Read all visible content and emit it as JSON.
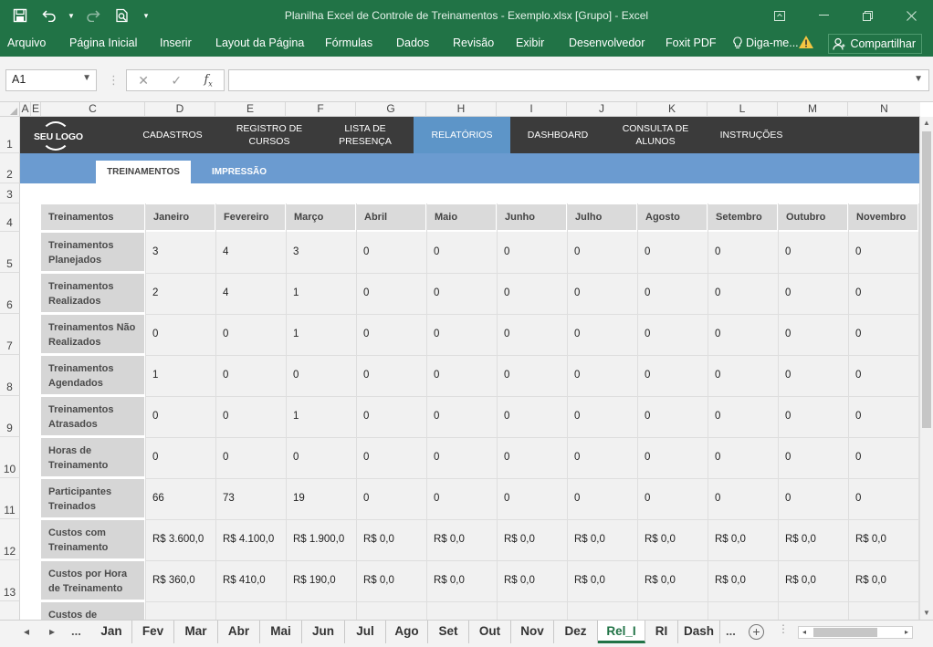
{
  "window": {
    "title": "Planilha Excel de Controle de Treinamentos - Exemplo.xlsx  [Grupo] - Excel"
  },
  "ribbon": {
    "tabs": [
      "Arquivo",
      "Página Inicial",
      "Inserir",
      "Layout da Página",
      "Fórmulas",
      "Dados",
      "Revisão",
      "Exibir",
      "Desenvolvedor",
      "Foxit PDF",
      "Diga-me..."
    ],
    "share": "Compartilhar"
  },
  "formula_bar": {
    "name_box": "A1",
    "formula": ""
  },
  "columns": [
    "A",
    "E",
    "C",
    "D",
    "E",
    "F",
    "G",
    "H",
    "I",
    "J",
    "K",
    "L",
    "M",
    "N"
  ],
  "rows": [
    "1",
    "2",
    "3",
    "4",
    "5",
    "6",
    "7",
    "8",
    "9",
    "10",
    "11",
    "12",
    "13"
  ],
  "dashboard": {
    "logo": "SEU LOGO",
    "nav": [
      "CADASTROS",
      "REGISTRO DE CURSOS",
      "LISTA DE PRESENÇA",
      "RELATÓRIOS",
      "DASHBOARD",
      "CONSULTA DE ALUNOS",
      "INSTRUÇÕES"
    ],
    "active_nav": "RELATÓRIOS",
    "subtabs": [
      "TREINAMENTOS",
      "IMPRESSÃO"
    ],
    "active_subtab": "TREINAMENTOS"
  },
  "table": {
    "corner": "Treinamentos",
    "months": [
      "Janeiro",
      "Fevereiro",
      "Março",
      "Abril",
      "Maio",
      "Junho",
      "Julho",
      "Agosto",
      "Setembro",
      "Outubro",
      "Novembro"
    ],
    "rows": [
      {
        "label": "Treinamentos Planejados",
        "values": [
          "3",
          "4",
          "3",
          "0",
          "0",
          "0",
          "0",
          "0",
          "0",
          "0",
          "0"
        ]
      },
      {
        "label": "Treinamentos Realizados",
        "values": [
          "2",
          "4",
          "1",
          "0",
          "0",
          "0",
          "0",
          "0",
          "0",
          "0",
          "0"
        ]
      },
      {
        "label": "Treinamentos Não Realizados",
        "values": [
          "0",
          "0",
          "1",
          "0",
          "0",
          "0",
          "0",
          "0",
          "0",
          "0",
          "0"
        ]
      },
      {
        "label": "Treinamentos Agendados",
        "values": [
          "1",
          "0",
          "0",
          "0",
          "0",
          "0",
          "0",
          "0",
          "0",
          "0",
          "0"
        ]
      },
      {
        "label": "Treinamentos Atrasados",
        "values": [
          "0",
          "0",
          "1",
          "0",
          "0",
          "0",
          "0",
          "0",
          "0",
          "0",
          "0"
        ]
      },
      {
        "label": "Horas de Treinamento",
        "values": [
          "0",
          "0",
          "0",
          "0",
          "0",
          "0",
          "0",
          "0",
          "0",
          "0",
          "0"
        ]
      },
      {
        "label": "Participantes Treinados",
        "values": [
          "66",
          "73",
          "19",
          "0",
          "0",
          "0",
          "0",
          "0",
          "0",
          "0",
          "0"
        ]
      },
      {
        "label": "Custos com Treinamento",
        "values": [
          "R$ 3.600,0",
          "R$ 4.100,0",
          "R$ 1.900,0",
          "R$ 0,0",
          "R$ 0,0",
          "R$ 0,0",
          "R$ 0,0",
          "R$ 0,0",
          "R$ 0,0",
          "R$ 0,0",
          "R$ 0,0"
        ]
      },
      {
        "label": "Custos por Hora de Treinamento",
        "values": [
          "R$ 360,0",
          "R$ 410,0",
          "R$ 190,0",
          "R$ 0,0",
          "R$ 0,0",
          "R$ 0,0",
          "R$ 0,0",
          "R$ 0,0",
          "R$ 0,0",
          "R$ 0,0",
          "R$ 0,0"
        ]
      },
      {
        "label": "Custos de",
        "values": [
          "",
          "",
          "",
          "",
          "",
          "",
          "",
          "",
          "",
          "",
          ""
        ]
      }
    ]
  },
  "sheet_tabs": {
    "items": [
      "Jan",
      "Fev",
      "Mar",
      "Abr",
      "Mai",
      "Jun",
      "Jul",
      "Ago",
      "Set",
      "Out",
      "Nov",
      "Dez",
      "Rel_I",
      "RI",
      "Dash"
    ],
    "active": "Rel_I",
    "ellipsis": "..."
  },
  "colors": {
    "excel_green": "#217346",
    "nav_dark": "#3b3b3b",
    "nav_active": "#5d95c8",
    "subbar": "#6b9bd0"
  },
  "icons": [
    "save-icon",
    "undo-icon",
    "redo-icon",
    "print-preview-icon",
    "customize-qat-icon",
    "ribbon-display-icon",
    "minimize-icon",
    "restore-icon",
    "close-icon",
    "lightbulb-icon",
    "warning-icon",
    "person-icon",
    "cancel-icon",
    "enter-icon",
    "function-icon"
  ]
}
